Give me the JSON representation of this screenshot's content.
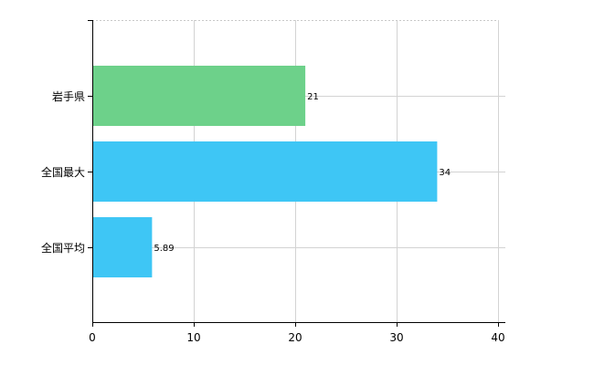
{
  "chart_data": {
    "type": "bar",
    "orientation": "horizontal",
    "title": "",
    "xlabel": "",
    "ylabel": "",
    "categories": [
      "岩手県",
      "全国最大",
      "全国平均"
    ],
    "values": [
      21,
      34,
      5.89
    ],
    "data_labels": [
      "21",
      "34",
      "5.89"
    ],
    "bar_colors": [
      "#6dd18a",
      "#3ec6f5",
      "#3ec6f5"
    ],
    "xlim": [
      0,
      40
    ],
    "xticks": [
      0,
      10,
      20,
      30,
      40
    ],
    "xtick_labels": [
      "0",
      "10",
      "20",
      "30",
      "40"
    ],
    "grid": true,
    "legend": "none"
  }
}
